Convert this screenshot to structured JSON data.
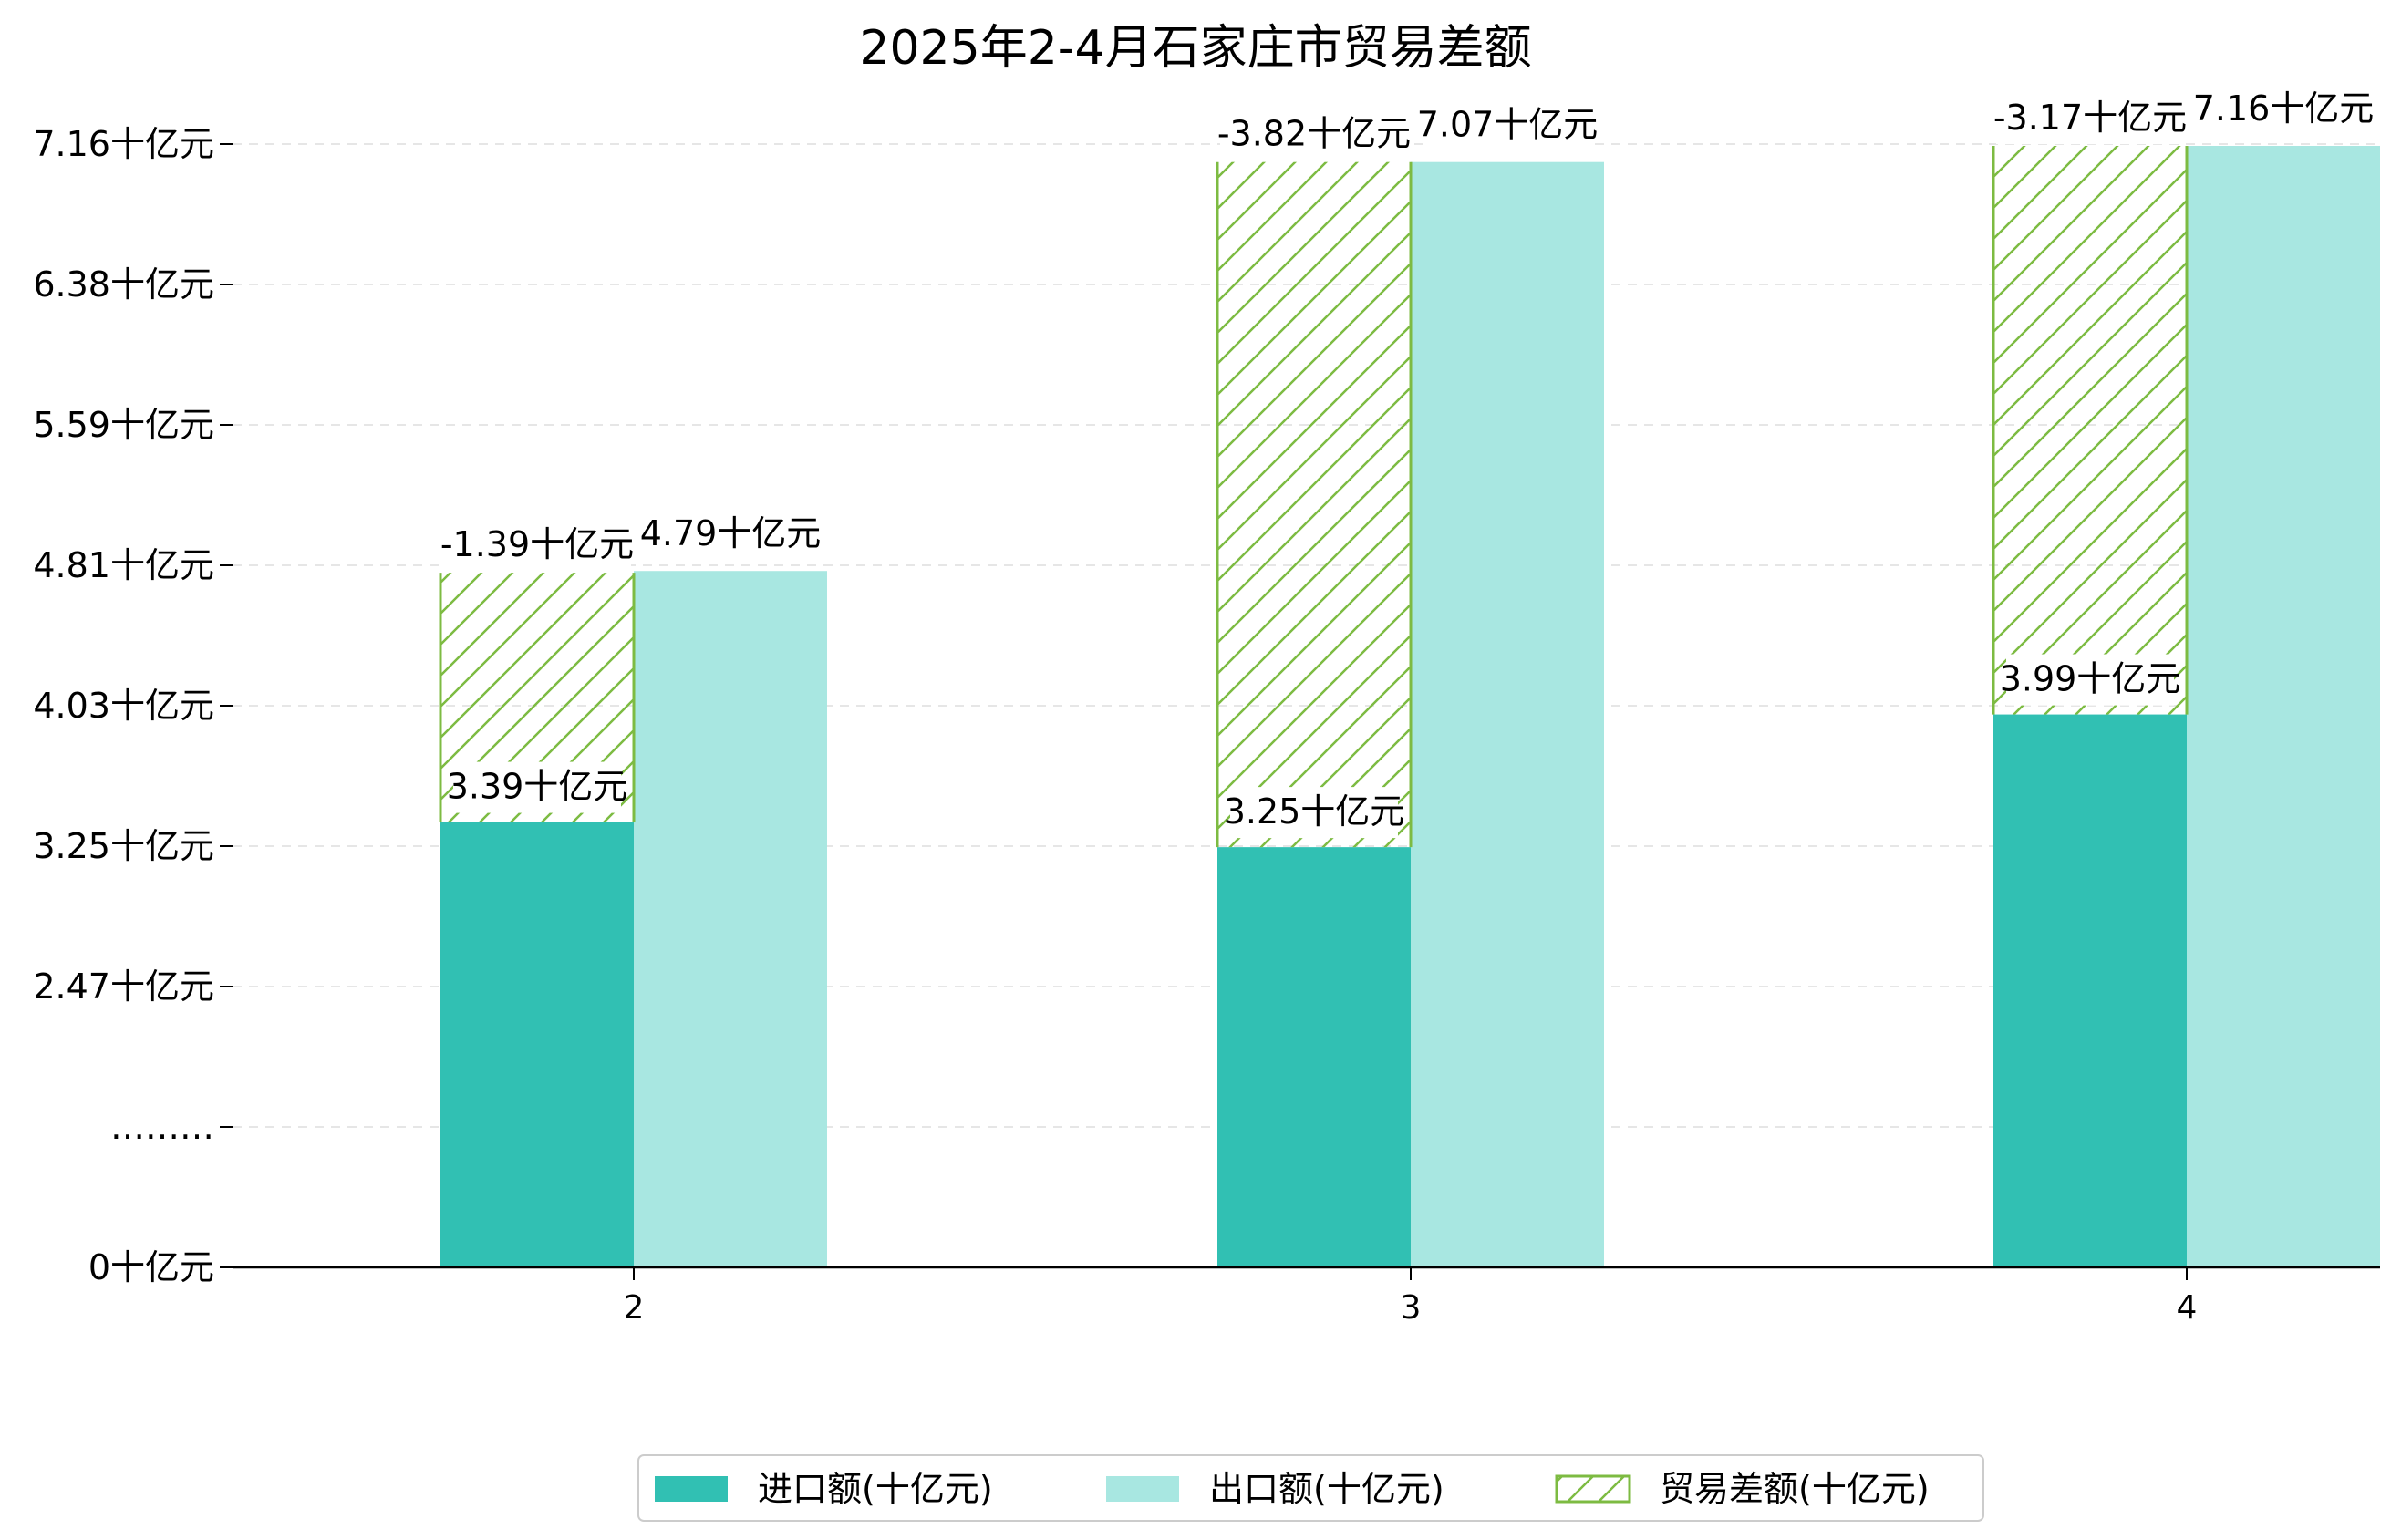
{
  "chart_data": {
    "type": "bar",
    "title": "2025年2-4月石家庄市贸易差额",
    "xlabel": "",
    "ylabel": "",
    "categories": [
      "2",
      "3",
      "4"
    ],
    "series": [
      {
        "name": "进口额(十亿元)",
        "values": [
          3.39,
          3.25,
          3.99
        ],
        "color": "#31c0b3",
        "labels": [
          "3.39十亿元",
          "3.25十亿元",
          "3.99十亿元"
        ]
      },
      {
        "name": "出口额(十亿元)",
        "values": [
          4.79,
          7.07,
          7.16
        ],
        "color": "#a8e7e1",
        "labels": [
          "4.79十亿元",
          "7.07十亿元",
          "7.16十亿元"
        ]
      },
      {
        "name": "贸易差额(十亿元)",
        "values": [
          -1.39,
          -3.82,
          -3.17
        ],
        "color": "#7dbb42",
        "labels": [
          "-1.39十亿元",
          "-3.82十亿元",
          "-3.17十亿元"
        ]
      }
    ],
    "yticks": [
      "0十亿元",
      "………",
      "2.47十亿元",
      "3.25十亿元",
      "4.03十亿元",
      "4.81十亿元",
      "5.59十亿元",
      "6.38十亿元",
      "7.16十亿元"
    ],
    "ylim_note": "broken axis: 0 then 1.69 upward",
    "ylim": [
      0,
      7.16
    ],
    "grid": true,
    "legend_position": "bottom-center"
  }
}
